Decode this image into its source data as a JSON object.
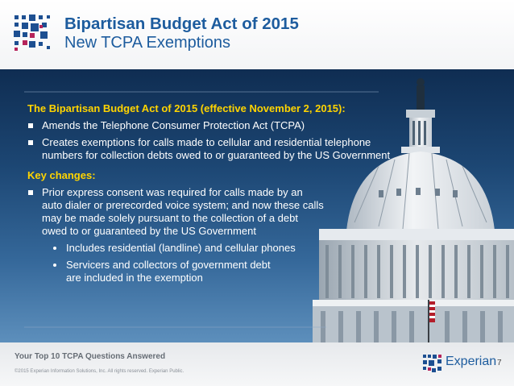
{
  "header": {
    "title": "Bipartisan Budget Act of 2015",
    "subtitle": "New TCPA Exemptions"
  },
  "content": {
    "lead": "The Bipartisan Budget Act of 2015 (effective November 2, 2015):",
    "bullets": [
      "Amends the Telephone Consumer Protection Act (TCPA)",
      "Creates exemptions for calls made to cellular and residential telephone numbers for collection debts owed to or guaranteed by the US Government"
    ],
    "key_changes_heading": "Key changes:",
    "key_bullets": [
      "Prior express consent was required for calls made by an auto dialer or prerecorded voice system; and now these calls may be made solely pursuant to the collection of a debt owed to or guaranteed by the US Government"
    ],
    "sub_bullets": [
      "Includes residential (landline) and cellular phones",
      "Servicers and collectors of government debt are included in the exemption"
    ]
  },
  "footer": {
    "title": "Your Top 10 TCPA Questions Answered",
    "copyright": "©2015 Experian Information Solutions, Inc. All rights reserved. Experian Public.",
    "brand": "Experian",
    "page": "7"
  },
  "colors": {
    "brand_blue": "#1d5c9e",
    "heading_yellow": "#ffd400",
    "logo_blue": "#1d4f91",
    "logo_magenta": "#b5245a"
  }
}
